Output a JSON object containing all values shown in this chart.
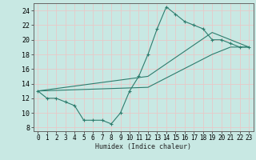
{
  "line1_x": [
    0,
    1,
    2,
    3,
    4,
    5,
    6,
    7,
    8,
    9,
    10,
    11,
    12,
    13,
    14,
    15,
    16,
    17,
    18,
    19,
    20,
    21,
    22,
    23
  ],
  "line1_y": [
    13,
    12,
    12,
    11.5,
    11,
    9,
    9,
    9,
    8.5,
    10,
    13,
    15,
    18,
    21.5,
    24.5,
    23.5,
    22.5,
    22,
    21.5,
    20,
    20,
    19.5,
    19,
    19
  ],
  "line2_x": [
    0,
    12,
    19,
    21,
    23
  ],
  "line2_y": [
    13,
    15,
    21,
    20,
    19
  ],
  "line3_x": [
    0,
    12,
    19,
    21,
    23
  ],
  "line3_y": [
    13,
    13.5,
    18,
    19,
    19
  ],
  "color": "#2e7d6e",
  "bg_color": "#c8e8e3",
  "grid_color": "#b0d4ce",
  "xlabel": "Humidex (Indice chaleur)",
  "xlim": [
    -0.5,
    23.5
  ],
  "ylim": [
    7.5,
    25
  ],
  "xticks": [
    0,
    1,
    2,
    3,
    4,
    5,
    6,
    7,
    8,
    9,
    10,
    11,
    12,
    13,
    14,
    15,
    16,
    17,
    18,
    19,
    20,
    21,
    22,
    23
  ],
  "yticks": [
    8,
    10,
    12,
    14,
    16,
    18,
    20,
    22,
    24
  ]
}
